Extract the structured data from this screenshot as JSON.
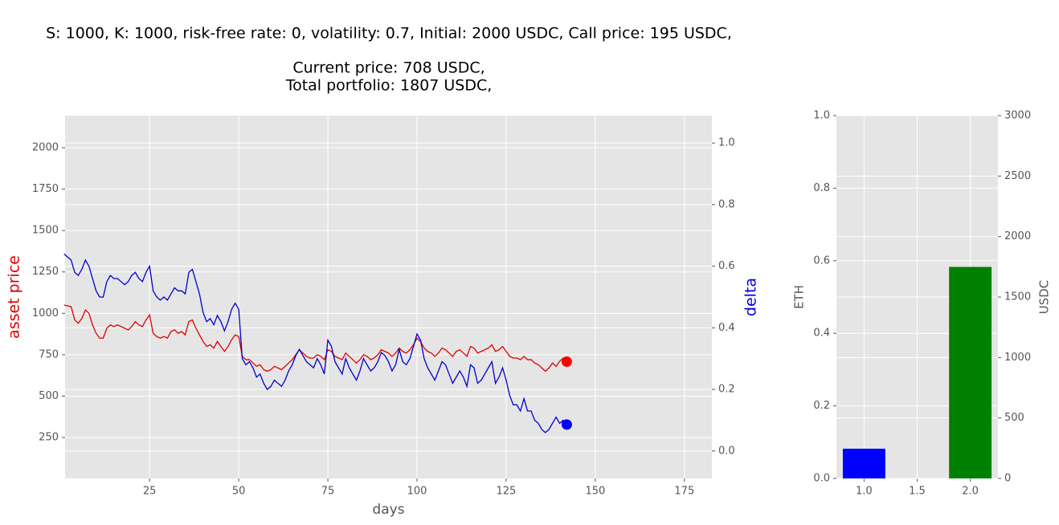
{
  "figure_title": [
    "S: 1000, K: 1000, risk-free rate: 0, volatility: 0.7,  Initial: 2000 USDC, Call price: 195 USDC,",
    "Current price: 708 USDC,",
    "Total portfolio: 1807 USDC,"
  ],
  "chart_data": [
    {
      "type": "line",
      "xlabel": "days",
      "ylabel": "asset price",
      "y2label": "delta",
      "ylabel_color": "#e00000",
      "y2label_color": "#0000e0",
      "grid": true,
      "xlim": [
        1.3,
        182.7
      ],
      "xticks": [
        25,
        50,
        75,
        100,
        125,
        150,
        175
      ],
      "ylim": [
        3,
        2194
      ],
      "yticks": [
        250,
        500,
        750,
        1000,
        1250,
        1500,
        1750,
        2000
      ],
      "y2lim": [
        -0.089,
        1.089
      ],
      "y2ticks": [
        {
          "value": 0,
          "label": "0.0"
        },
        0.2,
        0.4,
        0.6,
        0.8,
        {
          "value": 1,
          "label": "1.0"
        }
      ],
      "x": [
        1,
        2,
        3,
        4,
        5,
        6,
        7,
        8,
        9,
        10,
        11,
        12,
        13,
        14,
        15,
        16,
        17,
        18,
        19,
        20,
        21,
        22,
        23,
        24,
        25,
        26,
        27,
        28,
        29,
        30,
        31,
        32,
        33,
        34,
        35,
        36,
        37,
        38,
        39,
        40,
        41,
        42,
        43,
        44,
        45,
        46,
        47,
        48,
        49,
        50,
        51,
        52,
        53,
        54,
        55,
        56,
        57,
        58,
        59,
        60,
        61,
        62,
        63,
        64,
        65,
        66,
        67,
        68,
        69,
        70,
        71,
        72,
        73,
        74,
        75,
        76,
        77,
        78,
        79,
        80,
        81,
        82,
        83,
        84,
        85,
        86,
        87,
        88,
        89,
        90,
        91,
        92,
        93,
        94,
        95,
        96,
        97,
        98,
        99,
        100,
        101,
        102,
        103,
        104,
        105,
        106,
        107,
        108,
        109,
        110,
        111,
        112,
        113,
        114,
        115,
        116,
        117,
        118,
        119,
        120,
        121,
        122,
        123,
        124,
        125,
        126,
        127,
        128,
        129,
        130,
        131,
        132,
        133,
        134,
        135,
        136,
        137,
        138,
        139,
        140,
        141,
        142
      ],
      "series": [
        {
          "color": "#e00000",
          "values": [
            1050,
            1045,
            1040,
            960,
            940,
            970,
            1020,
            1000,
            930,
            880,
            850,
            850,
            910,
            930,
            920,
            930,
            920,
            910,
            900,
            920,
            950,
            930,
            920,
            960,
            990,
            880,
            860,
            850,
            860,
            850,
            890,
            900,
            880,
            890,
            870,
            950,
            960,
            910,
            870,
            830,
            800,
            810,
            790,
            830,
            800,
            770,
            800,
            840,
            870,
            860,
            740,
            720,
            720,
            700,
            680,
            690,
            660,
            650,
            660,
            680,
            670,
            660,
            680,
            700,
            720,
            750,
            780,
            760,
            740,
            730,
            730,
            750,
            740,
            720,
            780,
            770,
            740,
            730,
            720,
            760,
            740,
            720,
            700,
            720,
            750,
            740,
            720,
            730,
            750,
            780,
            770,
            760,
            740,
            760,
            790,
            770,
            760,
            780,
            810,
            850,
            830,
            790,
            770,
            760,
            740,
            760,
            790,
            780,
            760,
            740,
            770,
            780,
            760,
            740,
            800,
            790,
            760,
            770,
            780,
            790,
            810,
            770,
            780,
            800,
            770,
            740,
            730,
            730,
            720,
            740,
            720,
            720,
            700,
            690,
            670,
            650,
            670,
            700,
            680,
            710,
            730,
            708
          ]
        },
        {
          "color": "#0000d0",
          "axis": "y2",
          "values": [
            0.64,
            0.63,
            0.62,
            0.58,
            0.57,
            0.59,
            0.62,
            0.6,
            0.56,
            0.52,
            0.5,
            0.5,
            0.55,
            0.57,
            0.56,
            0.56,
            0.55,
            0.54,
            0.55,
            0.57,
            0.58,
            0.56,
            0.55,
            0.58,
            0.6,
            0.52,
            0.5,
            0.49,
            0.5,
            0.49,
            0.51,
            0.53,
            0.52,
            0.52,
            0.51,
            0.58,
            0.59,
            0.55,
            0.51,
            0.45,
            0.42,
            0.43,
            0.41,
            0.44,
            0.42,
            0.39,
            0.42,
            0.46,
            0.48,
            0.46,
            0.3,
            0.28,
            0.29,
            0.27,
            0.24,
            0.25,
            0.22,
            0.2,
            0.21,
            0.23,
            0.22,
            0.21,
            0.23,
            0.26,
            0.28,
            0.31,
            0.33,
            0.31,
            0.29,
            0.28,
            0.27,
            0.3,
            0.28,
            0.25,
            0.36,
            0.34,
            0.29,
            0.27,
            0.25,
            0.3,
            0.27,
            0.25,
            0.23,
            0.26,
            0.3,
            0.28,
            0.26,
            0.27,
            0.29,
            0.32,
            0.31,
            0.29,
            0.26,
            0.28,
            0.33,
            0.29,
            0.28,
            0.3,
            0.34,
            0.38,
            0.36,
            0.3,
            0.27,
            0.25,
            0.23,
            0.26,
            0.29,
            0.28,
            0.25,
            0.22,
            0.24,
            0.26,
            0.24,
            0.21,
            0.28,
            0.27,
            0.22,
            0.23,
            0.25,
            0.27,
            0.29,
            0.22,
            0.24,
            0.27,
            0.23,
            0.18,
            0.15,
            0.15,
            0.13,
            0.17,
            0.13,
            0.13,
            0.1,
            0.09,
            0.07,
            0.06,
            0.07,
            0.09,
            0.11,
            0.09,
            0.1,
            0.086
          ]
        }
      ],
      "markers": [
        {
          "x": 142,
          "value": 708,
          "color": "red"
        },
        {
          "x": 142,
          "value": 0.086,
          "color": "blue",
          "axis": "y2"
        }
      ]
    },
    {
      "type": "bar",
      "ylabel": "ETH",
      "y2label": "USDC",
      "grid": true,
      "bar_width": 0.4,
      "xlim": [
        0.74,
        2.26
      ],
      "xticks": [
        {
          "value": 1,
          "label": "1.0"
        },
        1.5,
        {
          "value": 2,
          "label": "2.0"
        }
      ],
      "ylim": [
        0,
        1
      ],
      "yticks": [
        {
          "value": 0,
          "label": "0.0"
        },
        0.2,
        0.4,
        0.6,
        0.8,
        {
          "value": 1,
          "label": "1.0"
        }
      ],
      "y2lim": [
        0,
        3000
      ],
      "y2ticks": [
        0,
        500,
        1000,
        1500,
        2000,
        2500,
        3000
      ],
      "bars": [
        {
          "x": 1,
          "value": 0.082,
          "color": "blue"
        },
        {
          "x": 2,
          "value": 1749,
          "color": "green",
          "axis": "y2"
        }
      ]
    }
  ]
}
